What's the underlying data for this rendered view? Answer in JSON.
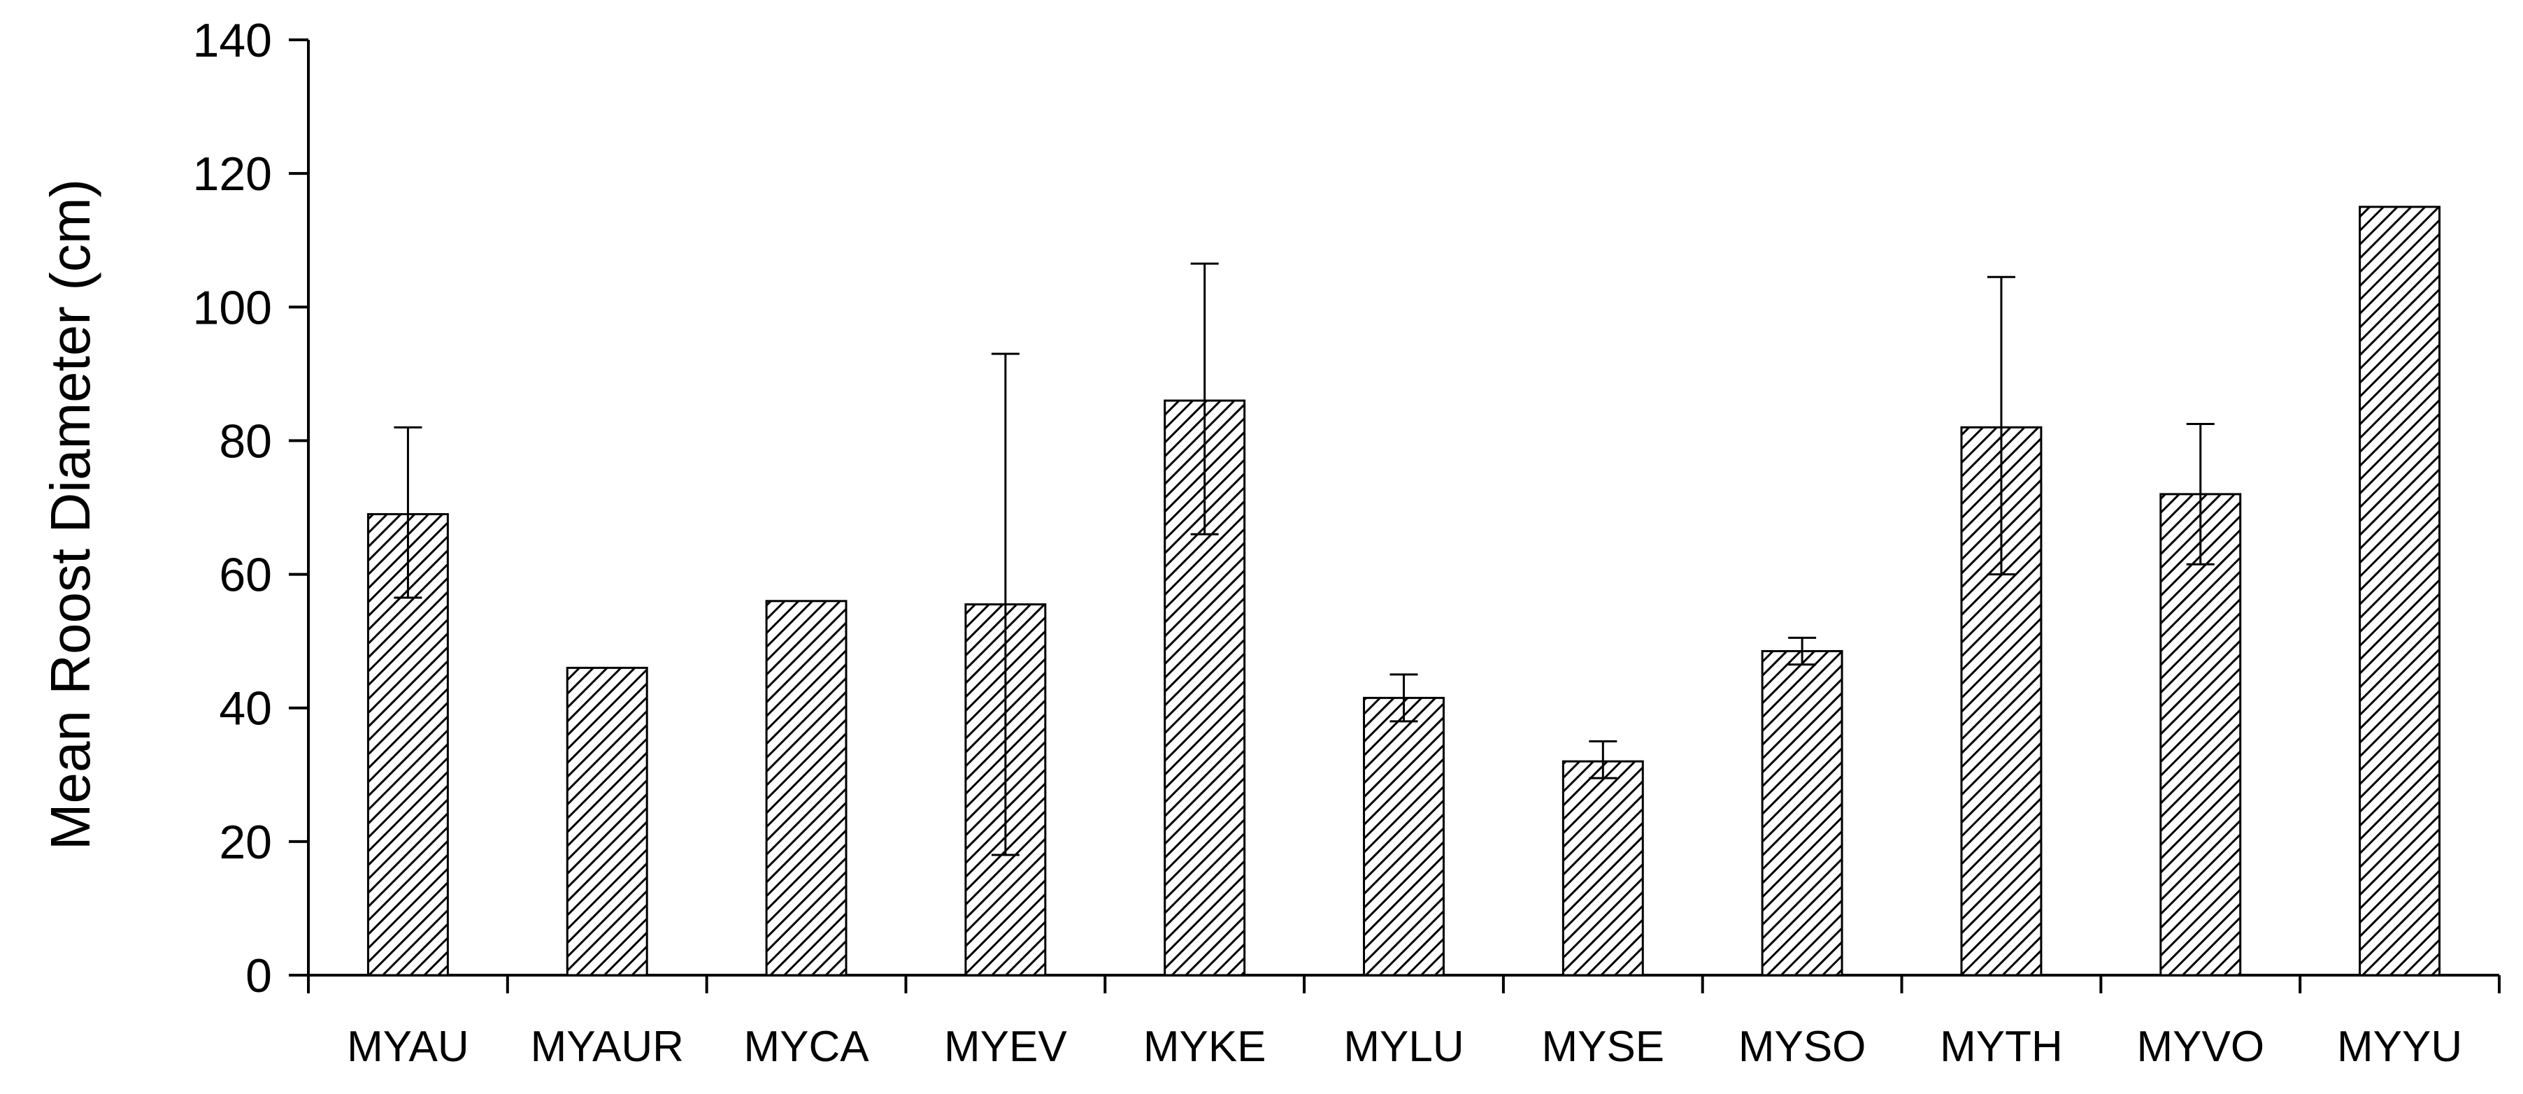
{
  "chart_data": {
    "type": "bar",
    "title": "",
    "xlabel": "",
    "ylabel": "Mean Roost Diameter (cm)",
    "ylim": [
      0,
      140
    ],
    "yticks": [
      0,
      20,
      40,
      60,
      80,
      100,
      120,
      140
    ],
    "grid": false,
    "legend": "none",
    "bar_fill": "diagonal hatch",
    "colors": {
      "bar_stroke": "#000000",
      "hatch": "#000000",
      "background": "#ffffff",
      "axis": "#000000"
    },
    "categories": [
      "MYAU",
      "MYAUR",
      "MYCA",
      "MYEV",
      "MYKE",
      "MYLU",
      "MYSE",
      "MYSO",
      "MYTH",
      "MYVO",
      "MYYU"
    ],
    "series": [
      {
        "values": [
          69,
          46,
          56,
          55.5,
          86,
          41.5,
          32,
          48.5,
          82,
          72,
          115
        ],
        "error_upper": [
          82,
          null,
          null,
          93,
          106.5,
          45,
          35,
          50.5,
          104.5,
          82.5,
          null
        ],
        "error_lower": [
          56.5,
          null,
          null,
          18,
          66,
          38,
          29.5,
          46.5,
          60,
          61.5,
          null
        ]
      }
    ]
  }
}
